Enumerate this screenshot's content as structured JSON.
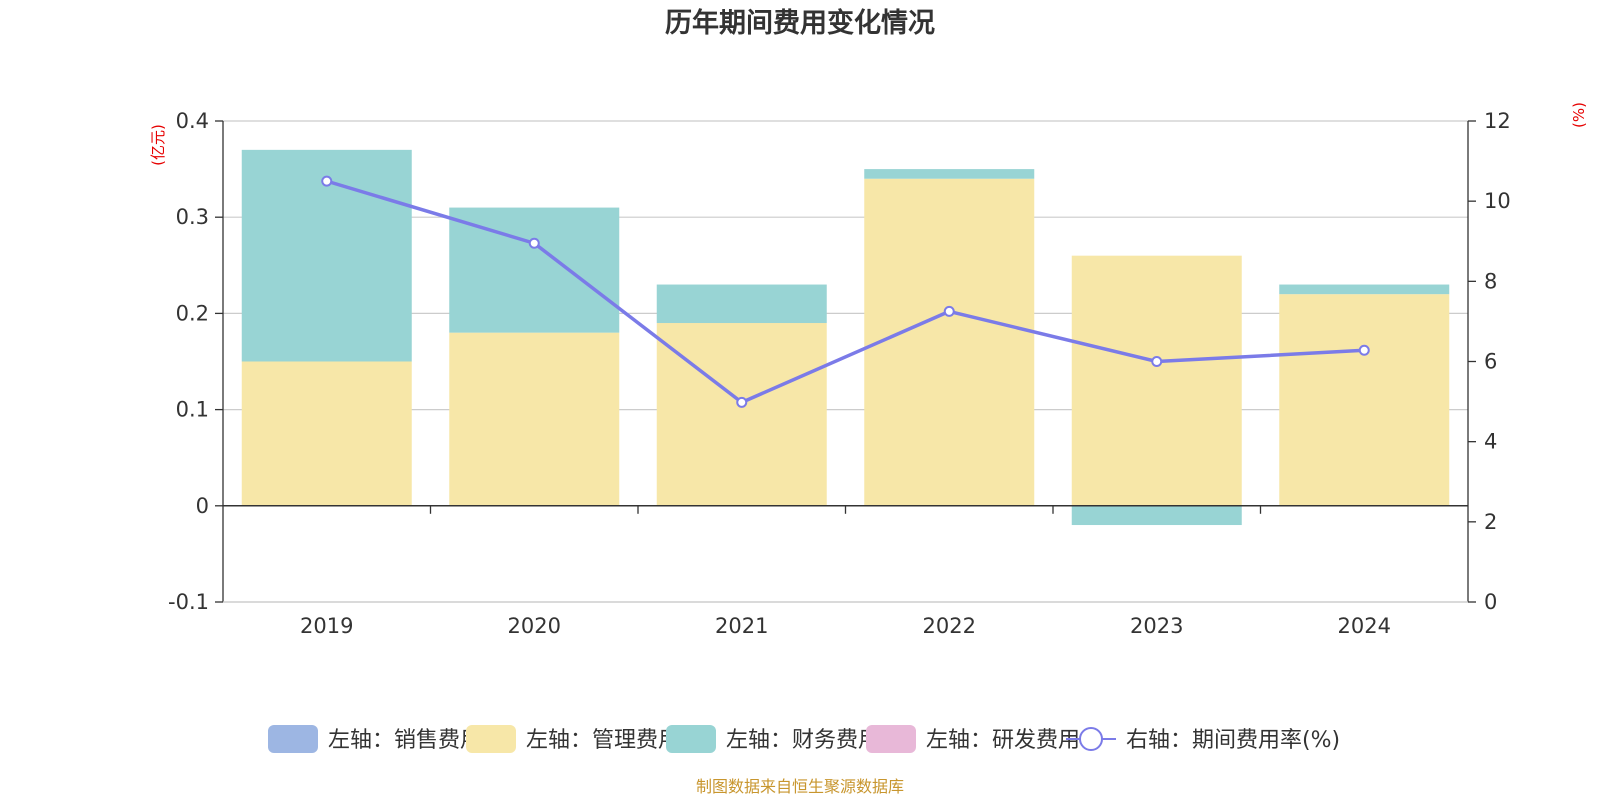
{
  "chart_data": {
    "type": "bar",
    "title": "历年期间费用变化情况",
    "categories": [
      "2019",
      "2020",
      "2021",
      "2022",
      "2023",
      "2024"
    ],
    "left_axis": {
      "unit": "(亿元)",
      "ylim": [
        -0.1,
        0.4
      ],
      "ticks": [
        "0.4",
        "0.3",
        "0.2",
        "0.1",
        "0",
        "-0.1"
      ],
      "tick_values": [
        0.4,
        0.3,
        0.2,
        0.1,
        0,
        -0.1
      ]
    },
    "right_axis": {
      "unit": "(%)",
      "ylim": [
        0,
        12
      ],
      "ticks": [
        "12",
        "10",
        "8",
        "6",
        "4",
        "2",
        "0"
      ],
      "tick_values": [
        12,
        10,
        8,
        6,
        4,
        2,
        0
      ]
    },
    "series": [
      {
        "name": "左轴：销售费用",
        "type": "bar",
        "axis": "left",
        "color": "#9db6e3",
        "values": [
          0,
          0,
          0,
          0,
          0,
          0
        ]
      },
      {
        "name": "左轴：管理费用",
        "type": "bar",
        "axis": "left",
        "color": "#f7e7a8",
        "values": [
          0.15,
          0.18,
          0.19,
          0.34,
          0.26,
          0.22
        ]
      },
      {
        "name": "左轴：财务费用",
        "type": "bar",
        "axis": "left",
        "color": "#98d4d4",
        "values": [
          0.22,
          0.13,
          0.04,
          0.01,
          -0.02,
          0.01
        ]
      },
      {
        "name": "左轴：研发费用",
        "type": "bar",
        "axis": "left",
        "color": "#e8b8d8",
        "values": [
          0,
          0,
          0,
          0,
          0,
          0
        ]
      },
      {
        "name": "右轴：期间费用率(%)",
        "type": "line",
        "axis": "right",
        "color": "#7b7be8",
        "values": [
          10.5,
          8.95,
          4.98,
          7.25,
          6.0,
          6.28
        ]
      }
    ],
    "grid": true,
    "legend_position": "bottom"
  },
  "footer": {
    "source": "制图数据来自恒生聚源数据库"
  }
}
